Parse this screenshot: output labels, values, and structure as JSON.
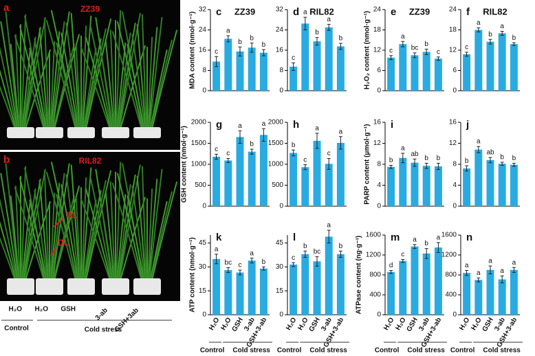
{
  "photos": {
    "panels": [
      {
        "label": "a",
        "title": "ZZ39"
      },
      {
        "label": "b",
        "title": "RIL82",
        "annotations": [
          "SL",
          "DL"
        ]
      }
    ],
    "treatments": [
      "H₂O",
      "H₂O",
      "GSH",
      "3-ab",
      "GSH+3ab"
    ],
    "groups": [
      "Control",
      "Cold stress"
    ]
  },
  "chart_data": [
    {
      "type": "bar",
      "panel": "c",
      "title": "ZZ39",
      "ylabel": "MDA content (nmol·g⁻¹)",
      "values": [
        11.5,
        20.5,
        15.5,
        17,
        15
      ],
      "errors": [
        2,
        1.2,
        1.8,
        1.8,
        1.2
      ],
      "letters": [
        "c",
        "a",
        "b",
        "b",
        "b"
      ],
      "ylim": [
        0,
        32
      ],
      "yticks": [
        0,
        8,
        16,
        24,
        32
      ],
      "color": "#29abe2"
    },
    {
      "type": "bar",
      "panel": "d",
      "title": "RIL82",
      "values": [
        9.5,
        26.5,
        19.5,
        25,
        17.5
      ],
      "errors": [
        1.5,
        2.5,
        1.5,
        1.2,
        1.2
      ],
      "letters": [
        "c",
        "a",
        "b",
        "a",
        "b"
      ],
      "ylim": [
        0,
        32
      ],
      "yticks": [
        0,
        8,
        16,
        24,
        32
      ],
      "color": "#29abe2"
    },
    {
      "type": "bar",
      "panel": "e",
      "title": "ZZ39",
      "ylabel": "H₂O₂ content (nmol·g⁻¹)",
      "values": [
        9.8,
        13.8,
        10.5,
        11.5,
        9.5
      ],
      "errors": [
        0.6,
        0.8,
        0.7,
        0.8,
        0.5
      ],
      "letters": [
        "c",
        "a",
        "bc",
        "b",
        "c"
      ],
      "ylim": [
        0,
        24
      ],
      "yticks": [
        0,
        6,
        12,
        18,
        24
      ],
      "color": "#29abe2"
    },
    {
      "type": "bar",
      "panel": "f",
      "title": "RIL82",
      "values": [
        10.8,
        18,
        14.5,
        17,
        13.8
      ],
      "errors": [
        0.6,
        0.6,
        0.7,
        0.6,
        0.4
      ],
      "letters": [
        "c",
        "a",
        "b",
        "a",
        "b"
      ],
      "ylim": [
        0,
        24
      ],
      "yticks": [
        0,
        6,
        12,
        18,
        24
      ],
      "color": "#29abe2"
    },
    {
      "type": "bar",
      "panel": "g",
      "ylabel": "GSH content (nmol·g⁻¹)",
      "values": [
        1180,
        1090,
        1650,
        1300,
        1700
      ],
      "errors": [
        60,
        50,
        150,
        60,
        150
      ],
      "letters": [
        "c",
        "c",
        "a",
        "b",
        "a"
      ],
      "ylim": [
        0,
        2000
      ],
      "yticks": [
        0,
        500,
        1000,
        1500,
        2000
      ],
      "color": "#29abe2"
    },
    {
      "type": "bar",
      "panel": "h",
      "values": [
        1270,
        930,
        1560,
        1010,
        1510
      ],
      "errors": [
        70,
        60,
        180,
        130,
        150
      ],
      "letters": [
        "b",
        "c",
        "a",
        "c",
        "a"
      ],
      "ylim": [
        0,
        2000
      ],
      "yticks": [
        0,
        500,
        1000,
        1500,
        2000
      ],
      "color": "#29abe2"
    },
    {
      "type": "bar",
      "panel": "i",
      "ylabel": "PARP content (μmol·g⁻¹)",
      "values": [
        7.5,
        9.2,
        8.3,
        7.7,
        7.6
      ],
      "errors": [
        0.3,
        0.9,
        0.7,
        0.5,
        0.6
      ],
      "letters": [
        "b",
        "a",
        "ab",
        "b",
        "b"
      ],
      "ylim": [
        0,
        16
      ],
      "yticks": [
        0,
        4,
        8,
        12,
        16
      ],
      "color": "#29abe2"
    },
    {
      "type": "bar",
      "panel": "j",
      "values": [
        7.2,
        10.8,
        8.8,
        8.1,
        7.9
      ],
      "errors": [
        0.5,
        0.6,
        0.5,
        0.3,
        0.3
      ],
      "letters": [
        "b",
        "a",
        "ab",
        "b",
        "b"
      ],
      "ylim": [
        0,
        16
      ],
      "yticks": [
        0,
        4,
        8,
        12,
        16
      ],
      "color": "#29abe2"
    },
    {
      "type": "bar",
      "panel": "k",
      "ylabel": "ATP content (nmol·g⁻¹)",
      "categories": [
        "H₂O",
        "H₂O",
        "GSH",
        "3-ab",
        "GSH+3-ab"
      ],
      "groups": [
        "Control",
        "Cold stress"
      ],
      "values": [
        35,
        28,
        26.5,
        34,
        29
      ],
      "errors": [
        3,
        1.5,
        1.5,
        1.5,
        1
      ],
      "letters": [
        "a",
        "bc",
        "c",
        "a",
        "b"
      ],
      "ylim": [
        0,
        50
      ],
      "yticks": [
        0,
        15,
        30,
        45
      ],
      "color": "#29abe2"
    },
    {
      "type": "bar",
      "panel": "l",
      "categories": [
        "H₂O",
        "H₂O",
        "GSH",
        "3-ab",
        "GSH+3-ab"
      ],
      "groups": [
        "Control",
        "Cold stress"
      ],
      "values": [
        31.5,
        38,
        33.5,
        49,
        38
      ],
      "errors": [
        1.2,
        2,
        3,
        4,
        2
      ],
      "letters": [
        "c",
        "b",
        "bc",
        "a",
        "b"
      ],
      "ylim": [
        0,
        50
      ],
      "yticks": [
        0,
        15,
        30,
        45
      ],
      "color": "#29abe2"
    },
    {
      "type": "bar",
      "panel": "m",
      "ylabel": "ATPase content (ng·g⁻¹)",
      "categories": [
        "H₂O",
        "H₂O",
        "GSH",
        "3-ab",
        "GSH+3-ab"
      ],
      "groups": [
        "Control",
        "Cold stress"
      ],
      "values": [
        860,
        1080,
        1370,
        1230,
        1350
      ],
      "errors": [
        30,
        30,
        40,
        100,
        100
      ],
      "letters": [
        "d",
        "c",
        "a",
        "b",
        "a"
      ],
      "ylim": [
        0,
        1600
      ],
      "yticks": [
        0,
        400,
        800,
        1200,
        1600
      ],
      "color": "#29abe2"
    },
    {
      "type": "bar",
      "panel": "n",
      "categories": [
        "H₂O",
        "H₂O",
        "GSH",
        "3-ab",
        "GSH+3-ab"
      ],
      "groups": [
        "Control",
        "Cold stress"
      ],
      "values": [
        840,
        700,
        900,
        710,
        900
      ],
      "errors": [
        50,
        40,
        80,
        70,
        50
      ],
      "letters": [
        "a",
        "a",
        "a",
        "a",
        "a"
      ],
      "ylim": [
        0,
        1600
      ],
      "yticks": [
        0,
        400,
        800,
        1200,
        1600
      ],
      "color": "#29abe2"
    }
  ]
}
